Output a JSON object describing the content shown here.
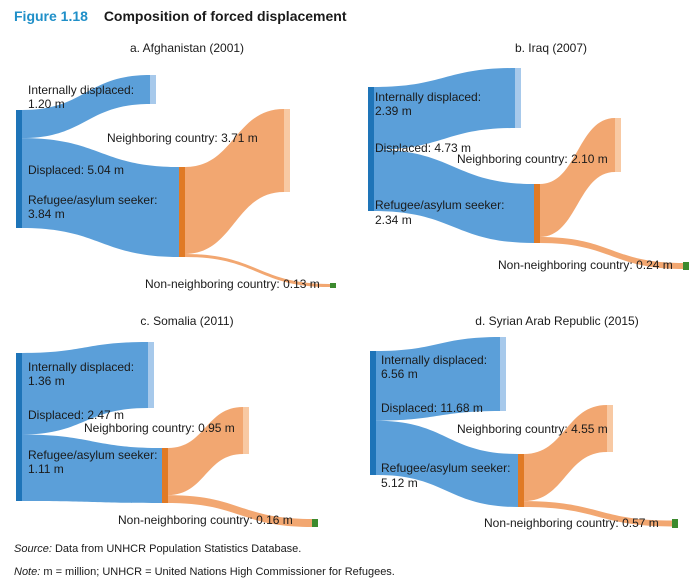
{
  "figure": {
    "number": "Figure 1.18",
    "title": "Composition of forced displacement"
  },
  "colors": {
    "displaced_bar": "#1e74b8",
    "blue_flow": "#5b9fd9",
    "internal_bar": "#a7c9eb",
    "refugee_bar": "#e07a25",
    "orange_flow": "#f2a771",
    "neighbor_bar": "#f8c9a3",
    "non_neighbor_bar": "#3c8a2e"
  },
  "panels": [
    {
      "title": "a. Afghanistan (2001)",
      "displaced": {
        "label": "Displaced: 5.04 m",
        "value": 5.04
      },
      "internal": {
        "label": "Internally displaced:",
        "value_text": "1.20 m",
        "value": 1.2
      },
      "refugee": {
        "label": "Refugee/asylum seeker:",
        "value_text": "3.84 m",
        "value": 3.84
      },
      "neighbor": {
        "label": "Neighboring country: 3.71 m",
        "value": 3.71
      },
      "non_neighbor": {
        "label": "Non-neighboring country: 0.13 m",
        "value": 0.13
      }
    },
    {
      "title": "b. Iraq (2007)",
      "displaced": {
        "label": "Displaced: 4.73 m",
        "value": 4.73
      },
      "internal": {
        "label": "Internally displaced:",
        "value_text": "2.39 m",
        "value": 2.39
      },
      "refugee": {
        "label": "Refugee/asylum seeker:",
        "value_text": "2.34 m",
        "value": 2.34
      },
      "neighbor": {
        "label": "Neighboring country: 2.10 m",
        "value": 2.1
      },
      "non_neighbor": {
        "label": "Non-neighboring country: 0.24 m",
        "value": 0.24
      }
    },
    {
      "title": "c. Somalia (2011)",
      "displaced": {
        "label": "Displaced: 2.47 m",
        "value": 2.47
      },
      "internal": {
        "label": "Internally displaced:",
        "value_text": "1.36 m",
        "value": 1.36
      },
      "refugee": {
        "label": "Refugee/asylum seeker:",
        "value_text": "1.11 m",
        "value": 1.11
      },
      "neighbor": {
        "label": "Neighboring country: 0.95 m",
        "value": 0.95
      },
      "non_neighbor": {
        "label": "Non-neighboring country: 0.16 m",
        "value": 0.16
      }
    },
    {
      "title": "d. Syrian Arab Republic (2015)",
      "displaced": {
        "label": "Displaced: 11.68 m",
        "value": 11.68
      },
      "internal": {
        "label": "Internally displaced:",
        "value_text": "6.56 m",
        "value": 6.56
      },
      "refugee": {
        "label": "Refugee/asylum seeker:",
        "value_text": "5.12 m",
        "value": 5.12
      },
      "neighbor": {
        "label": "Neighboring country: 4.55 m",
        "value": 4.55
      },
      "non_neighbor": {
        "label": "Non-neighboring country: 0.57 m",
        "value": 0.57
      }
    }
  ],
  "footnotes": {
    "source_label": "Source:",
    "source_text": " Data from UNHCR Population Statistics Database.",
    "note_label": "Note:",
    "note_text": " m = million; UNHCR = United Nations High Commissioner for Refugees."
  }
}
